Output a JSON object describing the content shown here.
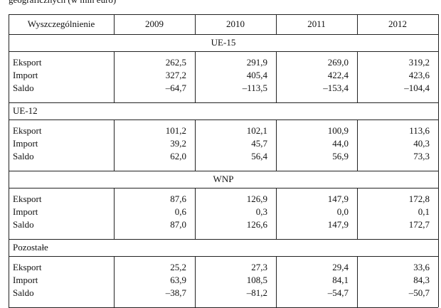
{
  "caption": "geograficznych (w mln euro)",
  "table": {
    "header": [
      "Wyszczególnienie",
      "2009",
      "2010",
      "2011",
      "2012"
    ],
    "sections": [
      {
        "title": "UE-15",
        "title_align": "center",
        "rows": [
          [
            "Eksport",
            "262,5",
            "291,9",
            "269,0",
            "319,2"
          ],
          [
            "Import",
            "327,2",
            "405,4",
            "422,4",
            "423,6"
          ],
          [
            "Saldo",
            "–64,7",
            "–113,5",
            "–153,4",
            "–104,4"
          ]
        ]
      },
      {
        "title": "UE-12",
        "title_align": "left",
        "rows": [
          [
            "Eksport",
            "101,2",
            "102,1",
            "100,9",
            "113,6"
          ],
          [
            "Import",
            "39,2",
            "45,7",
            "44,0",
            "40,3"
          ],
          [
            "Saldo",
            "62,0",
            "56,4",
            "56,9",
            "73,3"
          ]
        ]
      },
      {
        "title": "WNP",
        "title_align": "center",
        "rows": [
          [
            "Eksport",
            "87,6",
            "126,9",
            "147,9",
            "172,8"
          ],
          [
            "Import",
            "0,6",
            "0,3",
            "0,0",
            "0,1"
          ],
          [
            "Saldo",
            "87,0",
            "126,6",
            "147,9",
            "172,7"
          ]
        ]
      },
      {
        "title": "Pozostałe",
        "title_align": "left",
        "rows": [
          [
            "Eksport",
            "25,2",
            "27,3",
            "29,4",
            "33,6"
          ],
          [
            "Import",
            "63,9",
            "108,5",
            "84,1",
            "84,3"
          ],
          [
            "Saldo",
            "–38,7",
            "–81,2",
            "–54,7",
            "–50,7"
          ]
        ]
      }
    ]
  }
}
